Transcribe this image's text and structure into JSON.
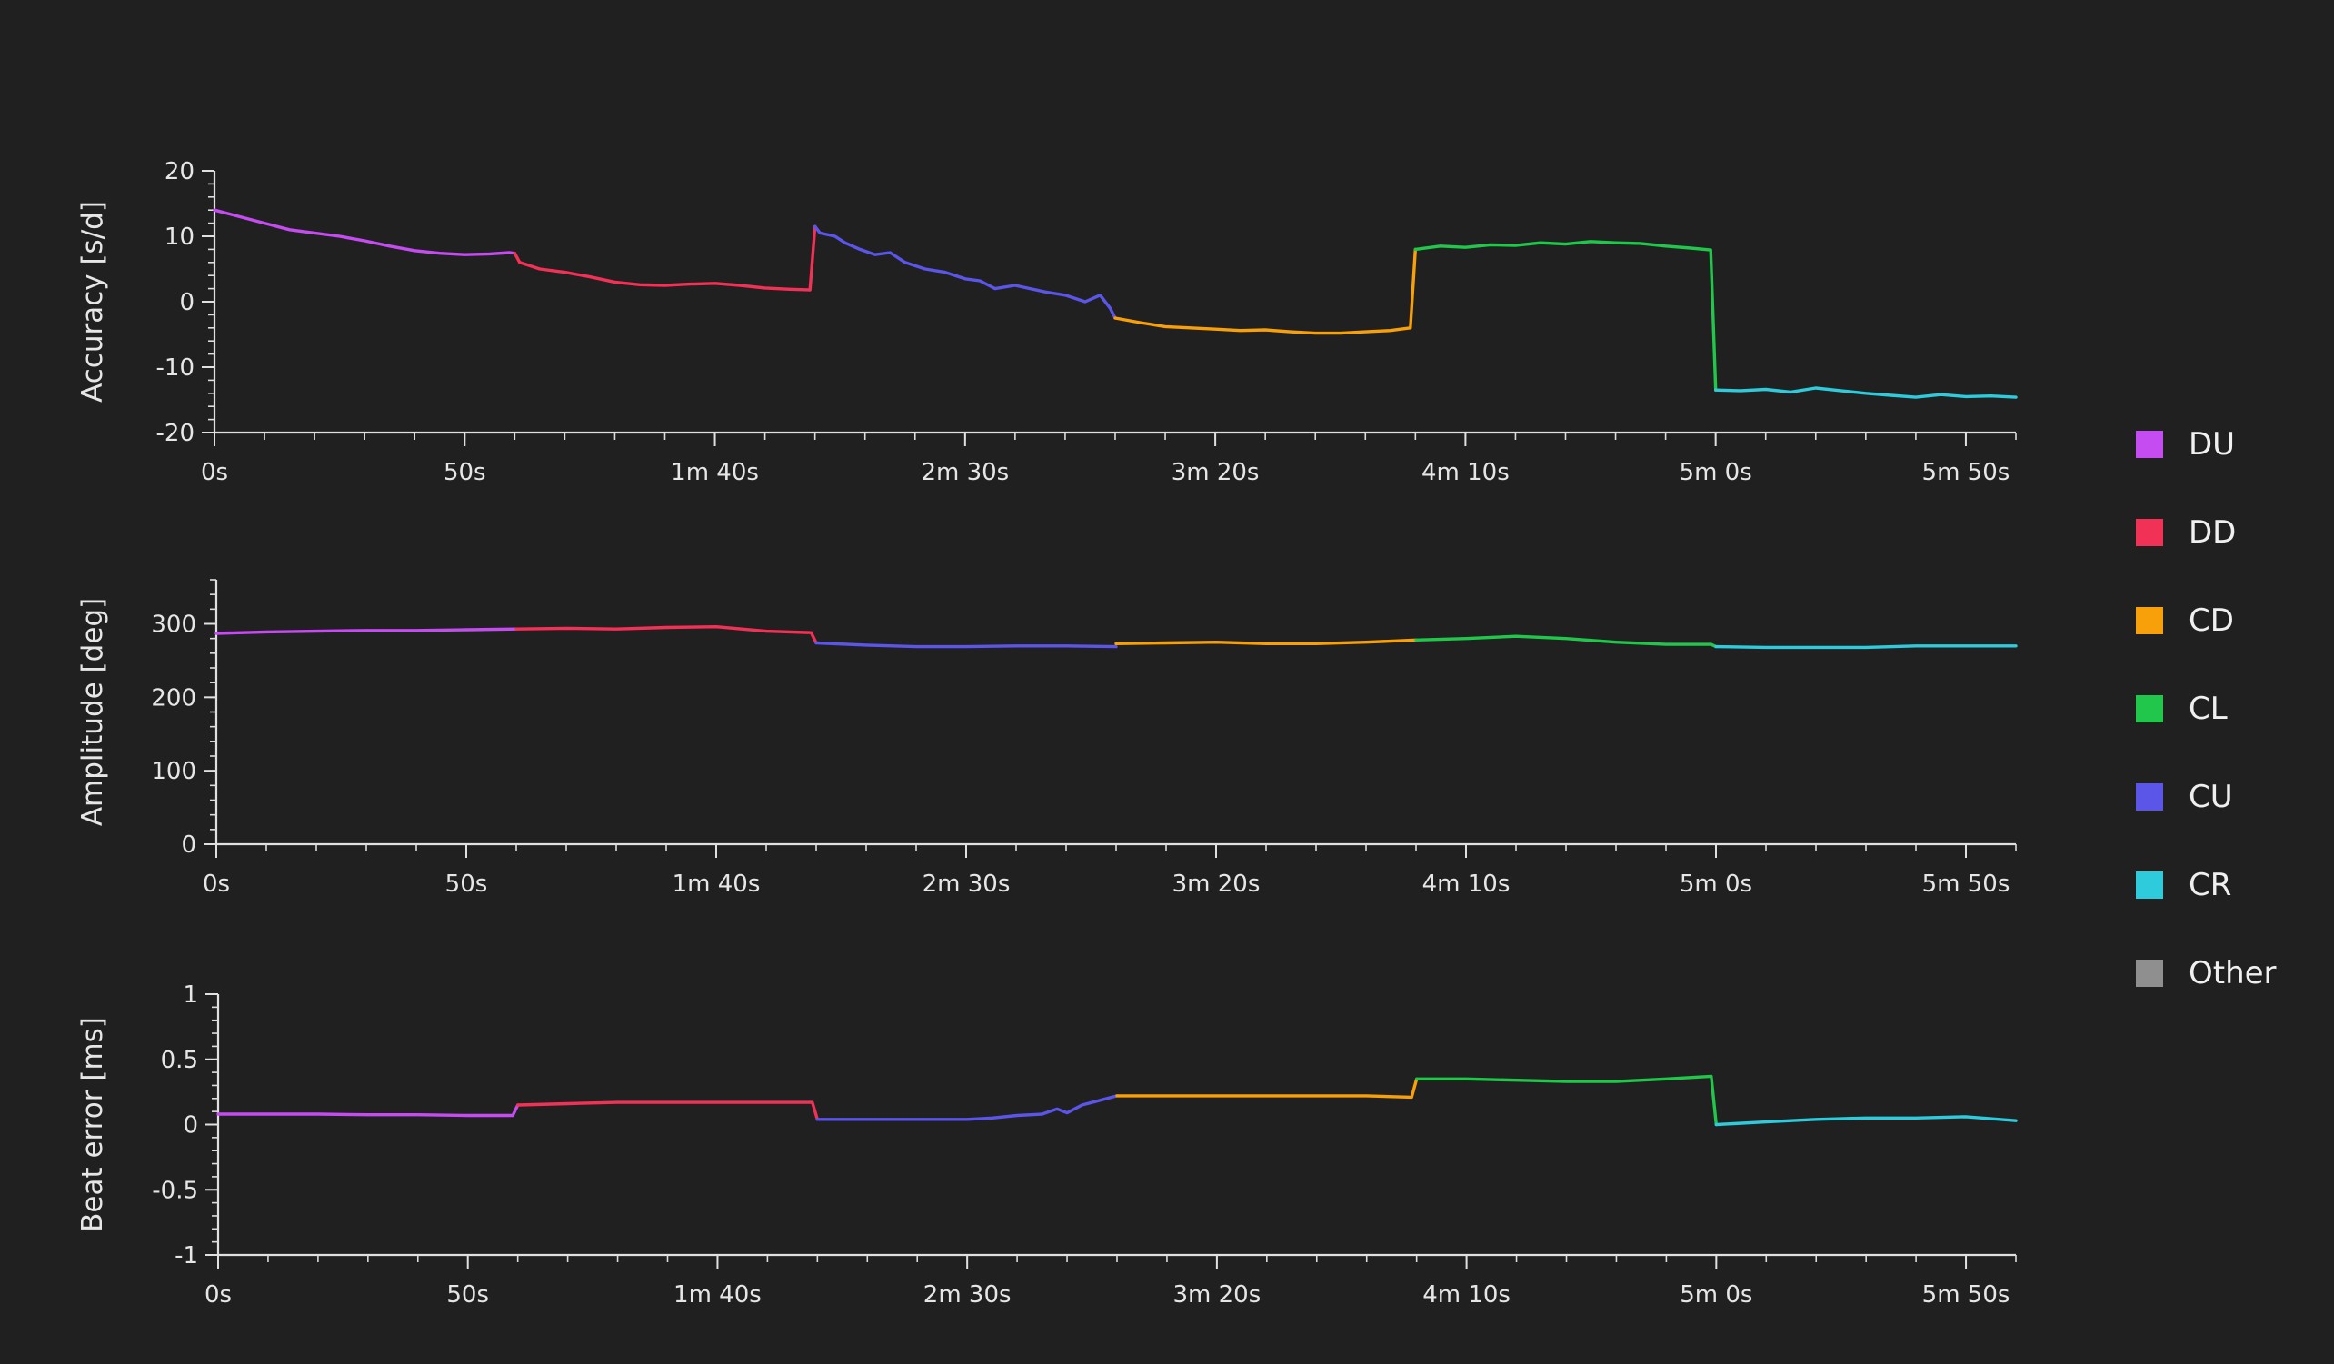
{
  "legend": [
    {
      "label": "DU",
      "color": "#c44cf0"
    },
    {
      "label": "DD",
      "color": "#f23157"
    },
    {
      "label": "CD",
      "color": "#f7a00a"
    },
    {
      "label": "CL",
      "color": "#21c74a"
    },
    {
      "label": "CU",
      "color": "#5b55e8"
    },
    {
      "label": "CR",
      "color": "#2dcbdc"
    },
    {
      "label": "Other",
      "color": "#8f8f8f"
    }
  ],
  "chart_data": [
    {
      "type": "line",
      "ylabel": "Accuracy [s/d]",
      "xlim": [
        0,
        360
      ],
      "ylim": [
        -20,
        20
      ],
      "yticks": [
        20,
        10,
        0,
        -10,
        -20
      ],
      "xticks": [
        0,
        50,
        100,
        150,
        200,
        250,
        300,
        350
      ],
      "xtick_labels": [
        "0s",
        "50s",
        "1m 40s",
        "2m 30s",
        "3m 20s",
        "4m 10s",
        "5m 0s",
        "5m 50s"
      ],
      "grid": false,
      "series": [
        {
          "name": "DU",
          "x": [
            0,
            5,
            10,
            15,
            20,
            25,
            30,
            35,
            40,
            45,
            50,
            55,
            59,
            60
          ],
          "y": [
            14,
            13,
            12,
            11,
            10.5,
            10,
            9.3,
            8.5,
            7.8,
            7.4,
            7.2,
            7.3,
            7.5,
            7.4
          ]
        },
        {
          "name": "DD",
          "x": [
            60,
            61,
            65,
            70,
            75,
            80,
            85,
            90,
            95,
            100,
            105,
            110,
            115,
            119,
            120
          ],
          "y": [
            7.4,
            6,
            5,
            4.5,
            3.8,
            3,
            2.6,
            2.5,
            2.7,
            2.8,
            2.5,
            2.1,
            1.9,
            1.8,
            11.5
          ]
        },
        {
          "name": "CU",
          "x": [
            120,
            121,
            124,
            126,
            129,
            132,
            135,
            138,
            142,
            146,
            150,
            153,
            156,
            160,
            163,
            166,
            170,
            174,
            177,
            179,
            180
          ],
          "y": [
            11.5,
            10.5,
            10,
            9,
            8,
            7.2,
            7.5,
            6,
            5,
            4.5,
            3.5,
            3.2,
            2,
            2.5,
            2,
            1.5,
            1,
            0,
            1,
            -1,
            -2.5
          ]
        },
        {
          "name": "CD",
          "x": [
            180,
            185,
            190,
            195,
            200,
            205,
            210,
            215,
            220,
            225,
            230,
            235,
            239,
            240
          ],
          "y": [
            -2.5,
            -3.2,
            -3.8,
            -4,
            -4.2,
            -4.4,
            -4.3,
            -4.6,
            -4.8,
            -4.8,
            -4.6,
            -4.4,
            -4,
            8
          ]
        },
        {
          "name": "CL",
          "x": [
            240,
            245,
            250,
            255,
            260,
            265,
            270,
            275,
            280,
            285,
            290,
            295,
            299,
            300
          ],
          "y": [
            8,
            8.5,
            8.3,
            8.7,
            8.6,
            9,
            8.8,
            9.2,
            9,
            8.9,
            8.5,
            8.2,
            7.9,
            -13.5
          ]
        },
        {
          "name": "CR",
          "x": [
            300,
            305,
            310,
            315,
            320,
            325,
            330,
            335,
            340,
            345,
            350,
            355,
            360
          ],
          "y": [
            -13.5,
            -13.6,
            -13.4,
            -13.8,
            -13.2,
            -13.6,
            -14,
            -14.3,
            -14.6,
            -14.2,
            -14.5,
            -14.4,
            -14.6
          ]
        }
      ]
    },
    {
      "type": "line",
      "ylabel": "Amplitude [deg]",
      "xlim": [
        0,
        360
      ],
      "ylim": [
        0,
        360
      ],
      "yticks": [
        300,
        200,
        100,
        0
      ],
      "xticks": [
        0,
        50,
        100,
        150,
        200,
        250,
        300,
        350
      ],
      "xtick_labels": [
        "0s",
        "50s",
        "1m 40s",
        "2m 30s",
        "3m 20s",
        "4m 10s",
        "5m 0s",
        "5m 50s"
      ],
      "grid": false,
      "series": [
        {
          "name": "DU",
          "x": [
            0,
            10,
            20,
            30,
            40,
            50,
            60
          ],
          "y": [
            287,
            289,
            290,
            291,
            291,
            292,
            293
          ]
        },
        {
          "name": "DD",
          "x": [
            60,
            70,
            80,
            90,
            100,
            110,
            119,
            120
          ],
          "y": [
            293,
            294,
            293,
            295,
            296,
            290,
            288,
            274
          ]
        },
        {
          "name": "CU",
          "x": [
            120,
            130,
            140,
            150,
            160,
            170,
            180
          ],
          "y": [
            274,
            271,
            269,
            269,
            270,
            270,
            269
          ]
        },
        {
          "name": "CD",
          "x": [
            180,
            190,
            200,
            210,
            220,
            230,
            240
          ],
          "y": [
            273,
            274,
            275,
            273,
            273,
            275,
            278
          ]
        },
        {
          "name": "CL",
          "x": [
            240,
            250,
            260,
            270,
            280,
            290,
            299,
            300
          ],
          "y": [
            278,
            280,
            283,
            280,
            275,
            272,
            272,
            269
          ]
        },
        {
          "name": "CR",
          "x": [
            300,
            310,
            320,
            330,
            340,
            350,
            360
          ],
          "y": [
            269,
            268,
            268,
            268,
            270,
            270,
            270
          ]
        }
      ]
    },
    {
      "type": "line",
      "ylabel": "Beat error [ms]",
      "xlim": [
        0,
        360
      ],
      "ylim": [
        -1,
        1
      ],
      "yticks": [
        1,
        0.5,
        0,
        -0.5,
        -1
      ],
      "ytick_labels": [
        "1",
        "0.5",
        "0",
        "-0.5",
        "-1"
      ],
      "xticks": [
        0,
        50,
        100,
        150,
        200,
        250,
        300,
        350
      ],
      "xtick_labels": [
        "0s",
        "50s",
        "1m 40s",
        "2m 30s",
        "3m 20s",
        "4m 10s",
        "5m 0s",
        "5m 50s"
      ],
      "grid": false,
      "series": [
        {
          "name": "DU",
          "x": [
            0,
            10,
            20,
            30,
            40,
            50,
            59,
            60
          ],
          "y": [
            0.08,
            0.08,
            0.08,
            0.075,
            0.075,
            0.07,
            0.07,
            0.15
          ]
        },
        {
          "name": "DD",
          "x": [
            60,
            70,
            80,
            90,
            100,
            110,
            119,
            120
          ],
          "y": [
            0.15,
            0.16,
            0.17,
            0.17,
            0.17,
            0.17,
            0.17,
            0.04
          ]
        },
        {
          "name": "CU",
          "x": [
            120,
            125,
            130,
            140,
            150,
            155,
            160,
            165,
            168,
            170,
            173,
            176,
            180
          ],
          "y": [
            0.04,
            0.04,
            0.04,
            0.04,
            0.04,
            0.05,
            0.07,
            0.08,
            0.12,
            0.09,
            0.15,
            0.18,
            0.22
          ]
        },
        {
          "name": "CD",
          "x": [
            180,
            190,
            200,
            210,
            220,
            230,
            239,
            240
          ],
          "y": [
            0.22,
            0.22,
            0.22,
            0.22,
            0.22,
            0.22,
            0.21,
            0.35
          ]
        },
        {
          "name": "CL",
          "x": [
            240,
            250,
            260,
            270,
            280,
            290,
            299,
            300
          ],
          "y": [
            0.35,
            0.35,
            0.34,
            0.33,
            0.33,
            0.35,
            0.37,
            0
          ]
        },
        {
          "name": "CR",
          "x": [
            300,
            310,
            320,
            330,
            340,
            350,
            360
          ],
          "y": [
            0,
            0.02,
            0.04,
            0.05,
            0.05,
            0.06,
            0.03
          ]
        }
      ]
    }
  ]
}
